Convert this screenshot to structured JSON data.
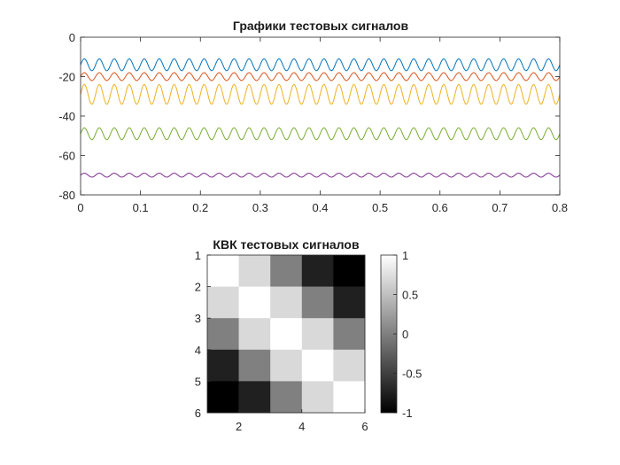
{
  "chart_data": [
    {
      "type": "line",
      "title": "Графики тестовых сигналов",
      "xlabel": "",
      "ylabel": "",
      "xlim": [
        0,
        0.8
      ],
      "ylim": [
        -80,
        0
      ],
      "x_ticks": [
        "0",
        "0.1",
        "0.2",
        "0.3",
        "0.4",
        "0.5",
        "0.6",
        "0.7",
        "0.8"
      ],
      "y_ticks": [
        "0",
        "-20",
        "-40",
        "-60",
        "-80"
      ],
      "grid": false,
      "series": [
        {
          "color": "#0072BD",
          "offset": -14,
          "amplitude": 3,
          "cycles": 32
        },
        {
          "color": "#D95319",
          "offset": -20,
          "amplitude": 2,
          "cycles": 32
        },
        {
          "color": "#EDB120",
          "offset": -29,
          "amplitude": 5,
          "cycles": 32
        },
        {
          "color": "#77AC30",
          "offset": -49,
          "amplitude": 3,
          "cycles": 32
        },
        {
          "color": "#7E2F8E",
          "offset": -70,
          "amplitude": 1,
          "cycles": 32
        }
      ]
    },
    {
      "type": "heatmap",
      "title": "КВК тестовых сигналов",
      "colormap": "gray",
      "clim": [
        -1,
        1
      ],
      "x_ticks": [
        "2",
        "4",
        "6"
      ],
      "y_ticks": [
        "1",
        "2",
        "3",
        "4",
        "5",
        "6"
      ],
      "colorbar_ticks": [
        "1",
        "0.5",
        "0",
        "-0.5",
        "-1"
      ],
      "values": [
        [
          1.0,
          0.7,
          0.0,
          -0.75,
          -1.0
        ],
        [
          0.7,
          1.0,
          0.7,
          0.0,
          -0.75
        ],
        [
          0.0,
          0.7,
          1.0,
          0.7,
          0.0
        ],
        [
          -0.75,
          0.0,
          0.7,
          1.0,
          0.7
        ],
        [
          -1.0,
          -0.75,
          0.0,
          0.7,
          1.0
        ]
      ]
    }
  ]
}
